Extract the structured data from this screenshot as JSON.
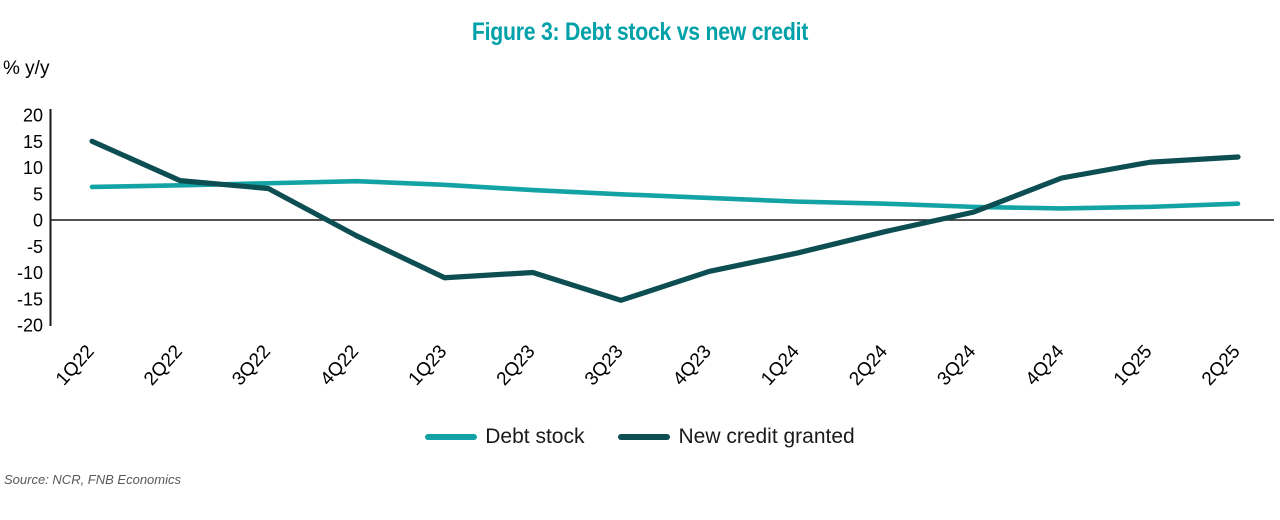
{
  "title": "Figure 3: Debt stock vs new credit",
  "y_unit_label": "% y/y",
  "source": "Source: NCR, FNB Economics",
  "colors": {
    "title": "#00A1A8",
    "debt_stock": "#14A3A4",
    "new_credit": "#0D4E52",
    "axis": "#1A1A1A",
    "tick_text": "#000000",
    "source_text": "#595959"
  },
  "legend": [
    {
      "label": "Debt stock",
      "color": "#14A3A4"
    },
    {
      "label": "New credit granted",
      "color": "#0D4E52"
    }
  ],
  "chart_data": {
    "type": "line",
    "categories": [
      "1Q22",
      "2Q22",
      "3Q22",
      "4Q22",
      "1Q23",
      "2Q23",
      "3Q23",
      "4Q23",
      "1Q24",
      "2Q24",
      "3Q24",
      "4Q24",
      "1Q25",
      "2Q25"
    ],
    "series": [
      {
        "name": "Debt stock",
        "color": "#14A3A4",
        "values": [
          6.3,
          6.6,
          7.0,
          7.4,
          6.7,
          5.7,
          4.9,
          4.2,
          3.5,
          3.1,
          2.5,
          2.2,
          2.5,
          3.1
        ]
      },
      {
        "name": "New credit granted",
        "color": "#0D4E52",
        "values": [
          15,
          7.5,
          6,
          -3,
          -11,
          -10,
          -15.3,
          -9.8,
          -6.3,
          -2.2,
          1.5,
          8,
          11,
          12
        ]
      }
    ],
    "title": "Figure 3: Debt stock vs new credit",
    "xlabel": "",
    "ylabel": "% y/y",
    "ylim": [
      -20,
      20
    ],
    "yticks": [
      20,
      15,
      10,
      5,
      0,
      -5,
      -10,
      -15,
      -20
    ],
    "grid": false,
    "legend_position": "bottom"
  }
}
